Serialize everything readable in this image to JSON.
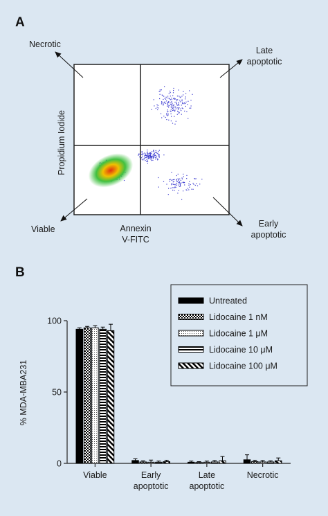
{
  "panels": {
    "a": "A",
    "b": "B"
  },
  "flow": {
    "quadrant_labels": {
      "necrotic": "Necrotic",
      "late": [
        "Late",
        "apoptotic"
      ],
      "viable": "Viable",
      "early": [
        "Early",
        "apoptotic"
      ]
    },
    "xlabel": [
      "Annexin",
      "V-FITC"
    ],
    "ylabel": "Propidium Iodide"
  },
  "chart_data": {
    "type": "bar",
    "categories": [
      [
        "Viable"
      ],
      [
        "Early",
        "apoptotic"
      ],
      [
        "Late",
        "apoptotic"
      ],
      [
        "Necrotic"
      ]
    ],
    "ylabel": "% MDA-MBA231",
    "ylim": [
      0,
      100
    ],
    "yticks": [
      0,
      50,
      100
    ],
    "legend_position": "top-right",
    "series": [
      {
        "name": "Untreated",
        "values": [
          94,
          2.0,
          0.8,
          2.5
        ],
        "errors": [
          1.0,
          1.2,
          0.8,
          3.5
        ],
        "pattern": "solid",
        "color": "#000000"
      },
      {
        "name": "Lidocaine 1 nM",
        "values": [
          95,
          1.0,
          0.6,
          1.2
        ],
        "errors": [
          1.0,
          0.8,
          0.6,
          1.0
        ],
        "pattern": "checker",
        "color": "#000000"
      },
      {
        "name": "Lidocaine 1 μM",
        "values": [
          95,
          0.8,
          0.8,
          1.0
        ],
        "errors": [
          1.5,
          1.5,
          0.8,
          1.0
        ],
        "pattern": "dots",
        "color": "#000000"
      },
      {
        "name": "Lidocaine 10 μM",
        "values": [
          94,
          0.8,
          1.0,
          1.0
        ],
        "errors": [
          1.5,
          0.8,
          1.0,
          0.8
        ],
        "pattern": "hstripe",
        "color": "#000000"
      },
      {
        "name": "Lidocaine 100 μM",
        "values": [
          93,
          1.2,
          1.8,
          1.8
        ],
        "errors": [
          4.5,
          1.0,
          3.0,
          2.0
        ],
        "pattern": "diag",
        "color": "#000000"
      }
    ]
  }
}
